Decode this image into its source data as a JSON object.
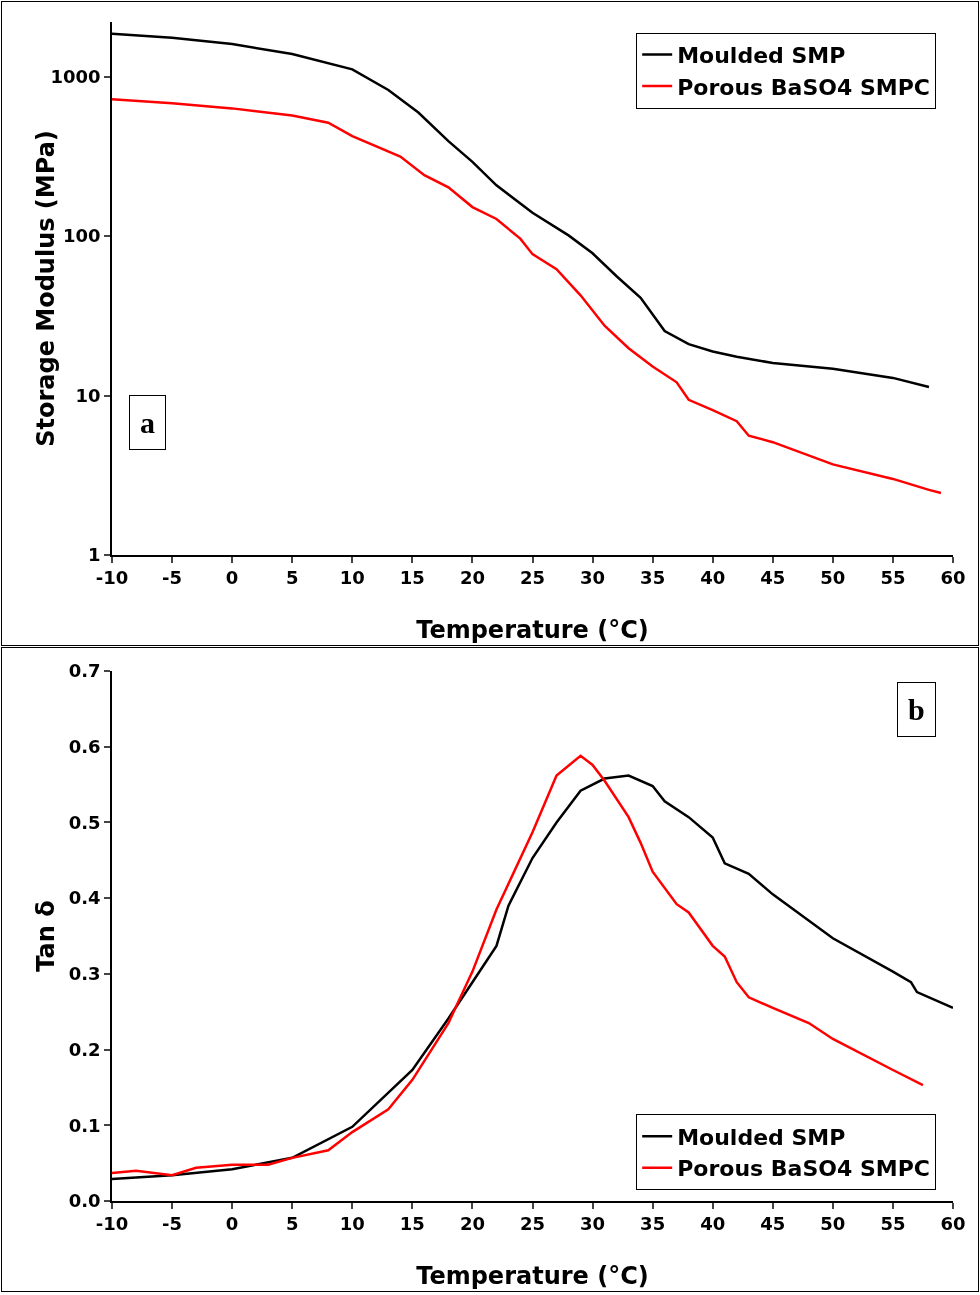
{
  "chart_data": [
    {
      "type": "line",
      "xlabel": "Temperature (°C)",
      "ylabel": "Storage Modulus (MPa)",
      "log": "y",
      "grid": false,
      "legend": "top right",
      "marker": "none",
      "line_style": "solid",
      "annotations": [
        "a"
      ],
      "xlim": [
        -10,
        60
      ],
      "xticks": [
        -10,
        -5,
        0,
        5,
        10,
        15,
        20,
        25,
        30,
        35,
        40,
        45,
        50,
        55,
        60
      ],
      "ylim": [
        1,
        2200
      ],
      "yticks": [
        1,
        10,
        100,
        1000
      ],
      "series": [
        {
          "name": "Moulded SMP",
          "color": "#000000",
          "x": [
            -10,
            -5,
            0,
            5,
            10,
            13,
            15.5,
            18,
            20,
            22,
            25,
            28,
            30,
            32,
            34,
            36,
            38,
            40,
            42,
            45,
            50,
            55,
            58
          ],
          "values": [
            1860,
            1750,
            1600,
            1385,
            1110,
            825,
            595,
            394,
            292,
            208,
            140,
            101,
            78,
            56,
            41,
            25.4,
            21,
            18.9,
            17.5,
            16,
            14.7,
            12.9,
            11.3
          ]
        },
        {
          "name": "Porous BaSO4 SMPC",
          "color": "#ff0000",
          "x": [
            -10,
            -5,
            0,
            5,
            8,
            10,
            14,
            16,
            18,
            20,
            22,
            24,
            25,
            27,
            29,
            31,
            33,
            35,
            37,
            38,
            40,
            42,
            43,
            45,
            50,
            55,
            58,
            59
          ],
          "values": [
            722,
            680,
            632,
            570,
            514,
            424,
            315,
            241,
            202,
            152,
            128,
            96,
            77,
            62,
            42.5,
            27.4,
            19.8,
            15.2,
            12.1,
            9.4,
            8.1,
            6.9,
            5.6,
            5.1,
            3.7,
            3.0,
            2.56,
            2.45
          ]
        }
      ]
    },
    {
      "type": "line",
      "xlabel": "Temperature (°C)",
      "ylabel": "Tan δ",
      "grid": false,
      "legend": "bottom right",
      "marker": "none",
      "line_style": "solid",
      "annotations": [
        "b"
      ],
      "xlim": [
        -10,
        60
      ],
      "xticks": [
        -10,
        -5,
        0,
        5,
        10,
        15,
        20,
        25,
        30,
        35,
        40,
        45,
        50,
        55,
        60
      ],
      "ylim": [
        0,
        0.7
      ],
      "yticks": [
        {
          "value": 0,
          "label": "0.0"
        },
        0.1,
        0.2,
        0.3,
        0.4,
        0.5,
        0.6,
        0.7
      ],
      "series": [
        {
          "name": "Moulded SMP",
          "color": "#000000",
          "x": [
            -10,
            -5,
            0,
            5,
            10,
            15,
            18,
            20,
            22,
            23,
            25,
            27,
            29,
            31,
            33,
            35,
            36,
            38,
            40,
            41,
            43,
            45,
            50,
            55,
            56.5,
            57,
            60
          ],
          "values": [
            0.029,
            0.034,
            0.042,
            0.057,
            0.098,
            0.173,
            0.241,
            0.289,
            0.337,
            0.39,
            0.453,
            0.5,
            0.542,
            0.558,
            0.562,
            0.548,
            0.528,
            0.507,
            0.48,
            0.446,
            0.432,
            0.405,
            0.347,
            0.303,
            0.289,
            0.276,
            0.255
          ]
        },
        {
          "name": "Porous BaSO4 SMPC",
          "color": "#ff0000",
          "x": [
            -10,
            -8,
            -5,
            -3,
            0,
            3,
            5,
            8,
            10,
            13,
            15,
            18,
            20,
            22,
            25,
            27,
            29,
            30,
            31,
            33,
            34,
            35,
            37,
            38,
            40,
            41,
            42,
            43,
            45,
            48,
            50,
            55,
            57.5
          ],
          "values": [
            0.037,
            0.04,
            0.034,
            0.044,
            0.048,
            0.048,
            0.057,
            0.067,
            0.091,
            0.121,
            0.16,
            0.235,
            0.303,
            0.385,
            0.487,
            0.562,
            0.588,
            0.576,
            0.555,
            0.507,
            0.473,
            0.435,
            0.392,
            0.381,
            0.337,
            0.323,
            0.289,
            0.269,
            0.255,
            0.235,
            0.214,
            0.173,
            0.153
          ]
        }
      ]
    }
  ]
}
